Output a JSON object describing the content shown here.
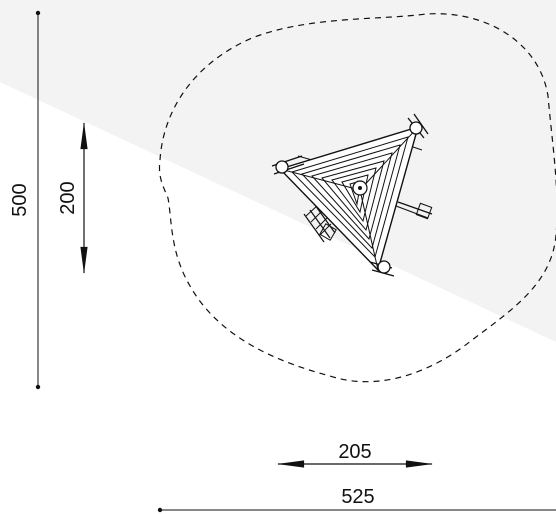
{
  "dimensions": {
    "overall_height": "500",
    "equipment_depth": "200",
    "equipment_width": "205",
    "overall_width": "525"
  },
  "colors": {
    "line": "#111111",
    "shade": "#f3f3f3",
    "background": "#ffffff"
  }
}
